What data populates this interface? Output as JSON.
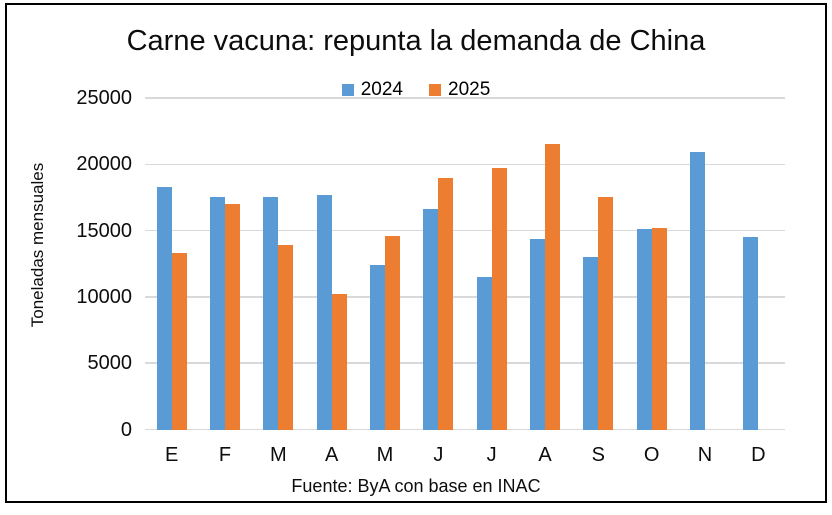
{
  "window": {
    "background": "#ffffff",
    "border_color": "#000000"
  },
  "chart_data": {
    "type": "bar",
    "title": "Carne vacuna: repunta la demanda de China",
    "ylabel": "Toneladas mensuales",
    "xlabel": "",
    "source": "Fuente: ByA con base en INAC",
    "categories": [
      "E",
      "F",
      "M",
      "A",
      "M",
      "J",
      "J",
      "A",
      "S",
      "O",
      "N",
      "D"
    ],
    "series": [
      {
        "name": "2024",
        "color": "#5B9BD5",
        "values": [
          18300,
          17500,
          17500,
          17700,
          12400,
          16600,
          11500,
          14400,
          13000,
          15100,
          20900,
          14500
        ]
      },
      {
        "name": "2025",
        "color": "#ED7D31",
        "values": [
          13300,
          17000,
          13900,
          10200,
          14600,
          19000,
          19700,
          21500,
          17500,
          15200,
          null,
          null
        ]
      }
    ],
    "ylim": [
      0,
      25000
    ],
    "yticks": [
      0,
      5000,
      10000,
      15000,
      20000,
      25000
    ],
    "grid": true,
    "gridline_color": "#d9d9d9",
    "legend_position": "top-center"
  }
}
